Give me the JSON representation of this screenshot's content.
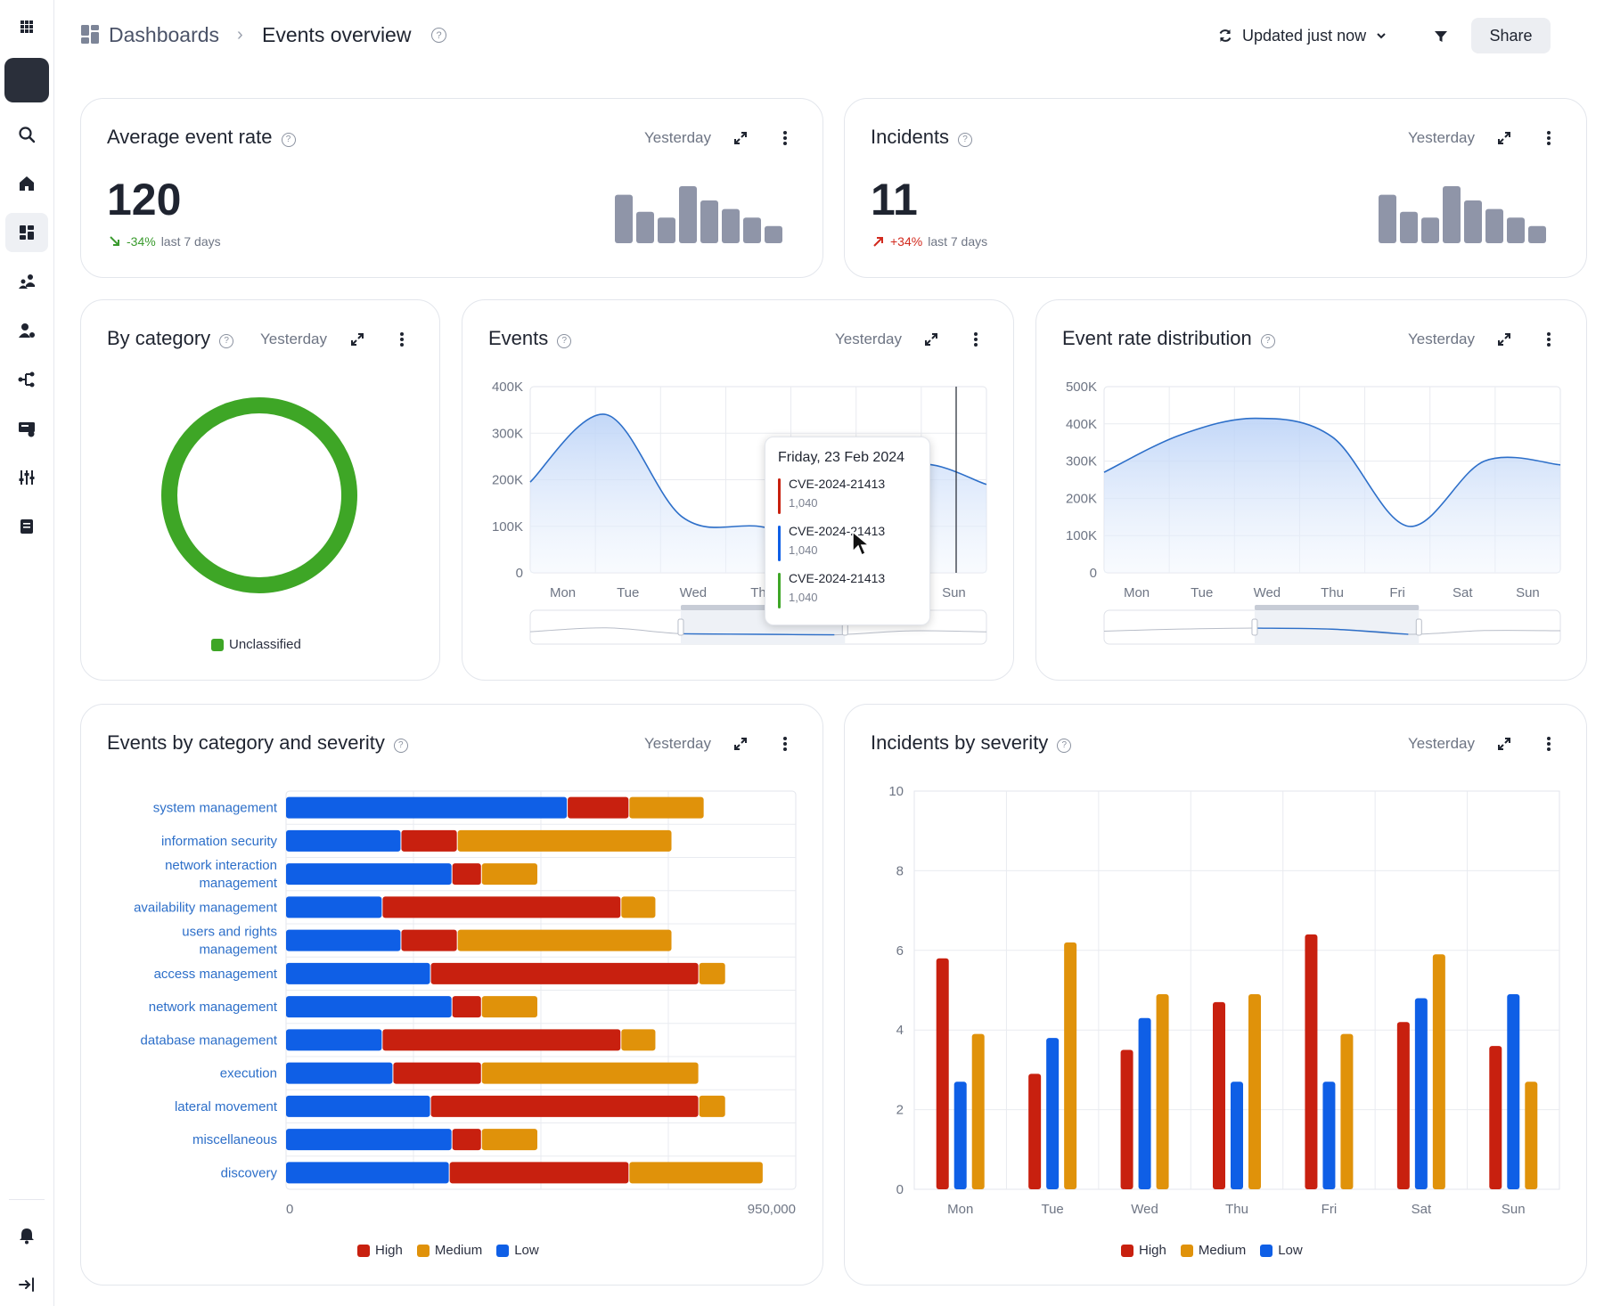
{
  "header": {
    "breadcrumb_root": "Dashboards",
    "title": "Events overview",
    "updated_label": "Updated just now",
    "share_label": "Share"
  },
  "sidebar": {
    "items": [
      "apps-grid-icon",
      "search-icon",
      "home-icon",
      "dashboard-icon",
      "assets-icon",
      "users-icon",
      "topology-icon",
      "incidents-icon",
      "settings-icon",
      "reports-icon",
      "bell-icon",
      "collapse-icon"
    ]
  },
  "colors": {
    "high": "#c8200f",
    "medium": "#e0920a",
    "low": "#0f5fe6",
    "unclassified": "#3ea626",
    "spark": "#8f95a8"
  },
  "cards": {
    "avg_rate": {
      "title": "Average event rate",
      "period": "Yesterday",
      "value": "120",
      "delta": "-34%",
      "delta_suffix": "last 7 days",
      "spark": [
        0.85,
        0.55,
        0.45,
        1.0,
        0.75,
        0.6,
        0.45,
        0.3
      ]
    },
    "incidents": {
      "title": "Incidents",
      "period": "Yesterday",
      "value": "11",
      "delta": "+34%",
      "delta_suffix": "last 7 days",
      "spark": [
        0.85,
        0.55,
        0.45,
        1.0,
        0.75,
        0.6,
        0.45,
        0.3
      ]
    },
    "by_category": {
      "title": "By category",
      "period": "Yesterday",
      "legend": "Unclassified"
    },
    "events": {
      "title": "Events",
      "period": "Yesterday",
      "tooltip": {
        "date": "Friday, 23 Feb 2024",
        "rows": [
          {
            "name": "CVE-2024-21413",
            "value": "1,040"
          },
          {
            "name": "CVE-2024-21413",
            "value": "1,040"
          },
          {
            "name": "CVE-2024-21413",
            "value": "1,040"
          }
        ]
      }
    },
    "distribution": {
      "title": "Event rate distribution",
      "period": "Yesterday"
    },
    "cat_severity": {
      "title": "Events by category and severity",
      "period": "Yesterday"
    },
    "inc_severity": {
      "title": "Incidents by severity",
      "period": "Yesterday"
    }
  },
  "chart_data": [
    {
      "type": "pie",
      "categories": [
        "Unclassified"
      ],
      "values": [
        100
      ]
    },
    {
      "type": "area",
      "x": [
        "Mon",
        "Tue",
        "Wed",
        "Thu",
        "Fri",
        "Sat",
        "Sun"
      ],
      "x_ticks": [
        "Mon",
        "Tue",
        "Wed",
        "Th",
        "",
        "",
        "Sun"
      ],
      "y_ticks": [
        "0",
        "100K",
        "200K",
        "300K",
        "400K"
      ],
      "ylim": [
        0,
        400000
      ],
      "values": [
        195000,
        340000,
        120000,
        100000,
        80000,
        230000,
        190000
      ]
    },
    {
      "type": "area",
      "x": [
        "Mon",
        "Tue",
        "Wed",
        "Thu",
        "Fri",
        "Sat",
        "Sun"
      ],
      "y_ticks": [
        "0",
        "100K",
        "200K",
        "300K",
        "400K",
        "500K"
      ],
      "ylim": [
        0,
        500000
      ],
      "values": [
        270000,
        370000,
        415000,
        365000,
        125000,
        300000,
        290000
      ]
    },
    {
      "type": "bar",
      "orientation": "horizontal-stacked",
      "categories": [
        "system management",
        "information security",
        "network interaction management",
        "availability management",
        "users and rights management",
        "access management",
        "network management",
        "database management",
        "execution",
        "lateral movement",
        "miscellaneous",
        "discovery"
      ],
      "series": [
        {
          "name": "Low",
          "values": [
            525000,
            215000,
            310000,
            180000,
            215000,
            270000,
            310000,
            180000,
            200000,
            270000,
            310000,
            305000
          ]
        },
        {
          "name": "High",
          "values": [
            115000,
            105000,
            55000,
            445000,
            105000,
            500000,
            55000,
            445000,
            165000,
            500000,
            55000,
            335000
          ]
        },
        {
          "name": "Medium",
          "values": [
            140000,
            400000,
            105000,
            65000,
            400000,
            50000,
            105000,
            65000,
            405000,
            50000,
            105000,
            250000
          ]
        }
      ],
      "x_ticks": [
        "0",
        "950,000"
      ],
      "xlim": [
        0,
        950000
      ],
      "legend": [
        "High",
        "Medium",
        "Low"
      ]
    },
    {
      "type": "bar",
      "categories": [
        "Mon",
        "Tue",
        "Wed",
        "Thu",
        "Fri",
        "Sat",
        "Sun"
      ],
      "series": [
        {
          "name": "High",
          "values": [
            5.8,
            2.9,
            3.5,
            4.7,
            6.4,
            4.2,
            3.6
          ]
        },
        {
          "name": "Low",
          "values": [
            2.7,
            3.8,
            4.3,
            2.7,
            2.7,
            4.8,
            4.9
          ]
        },
        {
          "name": "Medium",
          "values": [
            3.9,
            6.2,
            4.9,
            4.9,
            3.9,
            5.9,
            2.7
          ]
        }
      ],
      "y_ticks": [
        "0",
        "2",
        "4",
        "6",
        "8",
        "10"
      ],
      "ylim": [
        0,
        10
      ],
      "legend": [
        "High",
        "Medium",
        "Low"
      ]
    }
  ]
}
